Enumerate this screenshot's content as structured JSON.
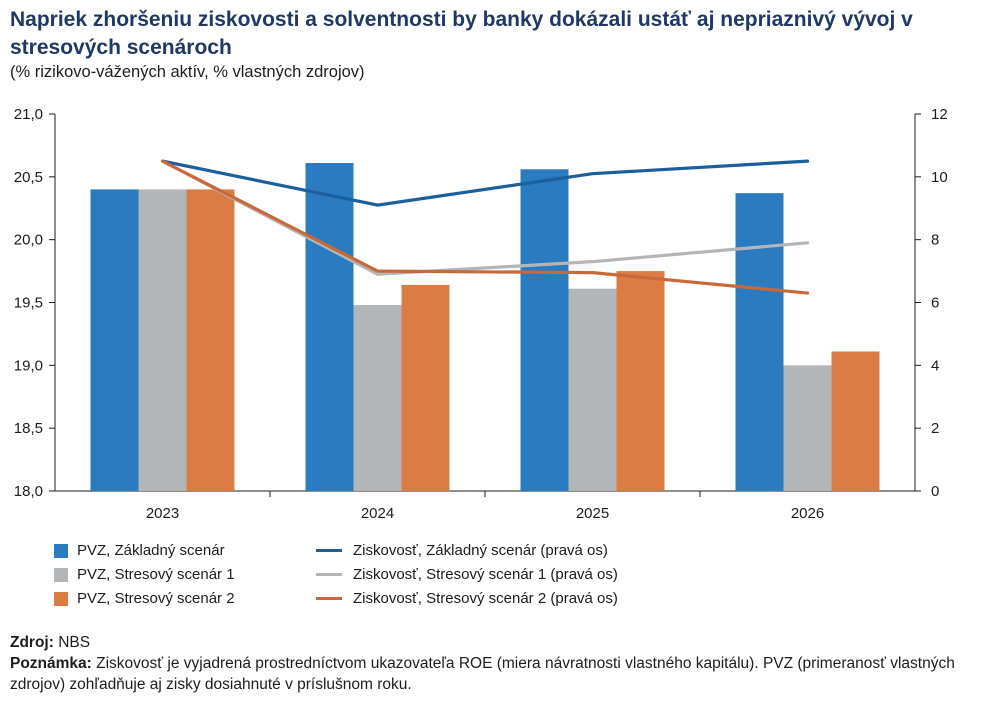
{
  "title": "Napriek zhoršeniu ziskovosti a solventnosti by banky dokázali ustáť aj nepriaznivý vývoj v stresových scenároch",
  "subtitle": "(% rizikovo-vážených aktív, % vlastných zdrojov)",
  "colors": {
    "blue": "#2a7bc0",
    "gray": "#b3b6b9",
    "orange": "#dc7c45",
    "line_blue": "#1c5f9a",
    "line_gray": "#b3b6b9",
    "line_orange": "#c8693a",
    "axis": "#1d1d1b"
  },
  "chart_data": {
    "type": "bar+line",
    "categories": [
      "2023",
      "2024",
      "2025",
      "2026"
    ],
    "left_axis": {
      "ylim": [
        18.0,
        21.0
      ],
      "ticks": [
        "18,0",
        "18,5",
        "19,0",
        "19,5",
        "20,0",
        "20,5",
        "21,0"
      ]
    },
    "right_axis": {
      "ylim": [
        0,
        12
      ],
      "ticks": [
        "0",
        "2",
        "4",
        "6",
        "8",
        "10",
        "12"
      ]
    },
    "bar_series": [
      {
        "name": "PVZ, Základný scenár",
        "color": "#2a7bc0",
        "values": [
          20.4,
          20.61,
          20.56,
          20.37
        ]
      },
      {
        "name": "PVZ, Stresový scenár 1",
        "color": "#b3b6b9",
        "values": [
          20.4,
          19.48,
          19.61,
          19.0
        ]
      },
      {
        "name": "PVZ, Stresový scenár 2",
        "color": "#dc7c45",
        "values": [
          20.4,
          19.64,
          19.75,
          19.11
        ]
      }
    ],
    "line_series": [
      {
        "name": "Ziskovosť, Základný scenár (pravá os)",
        "color": "#1c5f9a",
        "values": [
          10.5,
          9.1,
          10.1,
          10.5
        ]
      },
      {
        "name": "Ziskovosť, Stresový scenár 1 (pravá os)",
        "color": "#b3b6b9",
        "values": [
          10.5,
          6.9,
          7.3,
          7.9
        ]
      },
      {
        "name": "Ziskovosť, Stresový scenár 2 (pravá os)",
        "color": "#c8693a",
        "values": [
          10.5,
          7.0,
          6.95,
          6.3
        ]
      }
    ],
    "grid": false,
    "legend_position": "bottom"
  },
  "notes": {
    "source_label": "Zdroj:",
    "source_text": " NBS",
    "note_label": "Poznámka:",
    "note_text": " Ziskovosť je vyjadrená prostredníctvom ukazovateľa ROE (miera návratnosti vlastného kapitálu). PVZ (primeranosť vlastných zdrojov) zohľadňuje aj zisky dosiahnuté v príslušnom roku."
  }
}
